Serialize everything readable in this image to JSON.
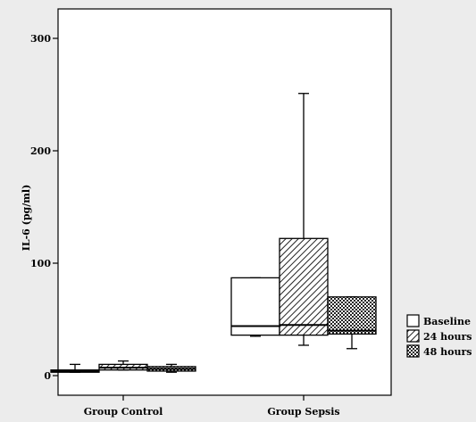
{
  "chart_data": {
    "type": "boxplot",
    "title": "",
    "xlabel": "",
    "ylabel": "IL-6 (pg/ml)",
    "ylim": [
      -10,
      300
    ],
    "yticks": [
      0,
      100,
      200,
      300
    ],
    "grid": false,
    "legend_position": "right",
    "categories": [
      "Group Control",
      "Group Sepsis"
    ],
    "series": [
      {
        "name": "Baseline",
        "fill": "white",
        "boxes": [
          {
            "whisker_low": 3,
            "q1": 3,
            "median": 4,
            "q3": 5,
            "whisker_high": 10
          },
          {
            "whisker_low": 35,
            "q1": 36,
            "median": 44,
            "q3": 87,
            "whisker_high": 87
          }
        ]
      },
      {
        "name": "24 hours",
        "fill": "diagonal-hatch",
        "boxes": [
          {
            "whisker_low": 5,
            "q1": 5,
            "median": 7,
            "q3": 10,
            "whisker_high": 13
          },
          {
            "whisker_low": 27,
            "q1": 36,
            "median": 45,
            "q3": 122,
            "whisker_high": 251
          }
        ]
      },
      {
        "name": "48 hours",
        "fill": "crosshatch",
        "boxes": [
          {
            "whisker_low": 3,
            "q1": 4,
            "median": 6,
            "q3": 8,
            "whisker_high": 10
          },
          {
            "whisker_low": 24,
            "q1": 37,
            "median": 40,
            "q3": 70,
            "whisker_high": 70
          }
        ]
      }
    ]
  }
}
